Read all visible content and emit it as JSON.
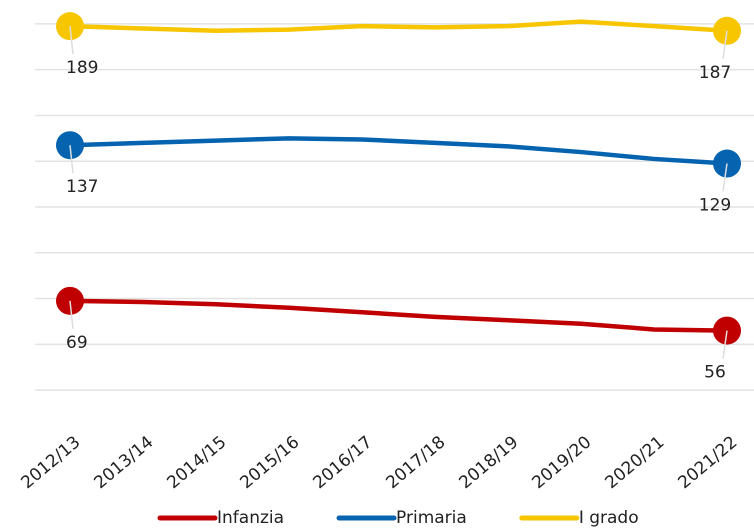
{
  "chart_data": {
    "type": "line",
    "categories": [
      "2012/13",
      "2013/14",
      "2014/15",
      "2015/16",
      "2016/17",
      "2017/18",
      "2018/19",
      "2019/20",
      "2020/21",
      "2021/22"
    ],
    "series": [
      {
        "name": "Infanzia",
        "color": "#c00000",
        "values": [
          69,
          68.5,
          67.5,
          66,
          64,
          62,
          60.5,
          59,
          56.5,
          56
        ]
      },
      {
        "name": "Primaria",
        "color": "#0563b0",
        "values": [
          137,
          138,
          139,
          140,
          139.5,
          138,
          136.5,
          134,
          131,
          129
        ]
      },
      {
        "name": "I grado",
        "color": "#f7c600",
        "values": [
          189,
          188,
          187,
          187.5,
          189,
          188.5,
          189,
          191,
          189,
          187
        ]
      }
    ],
    "ylim": [
      20,
      200
    ],
    "yticks": [
      30,
      50,
      70,
      90,
      110,
      130,
      150,
      170,
      190
    ],
    "grid": true,
    "legend": "bottom"
  }
}
